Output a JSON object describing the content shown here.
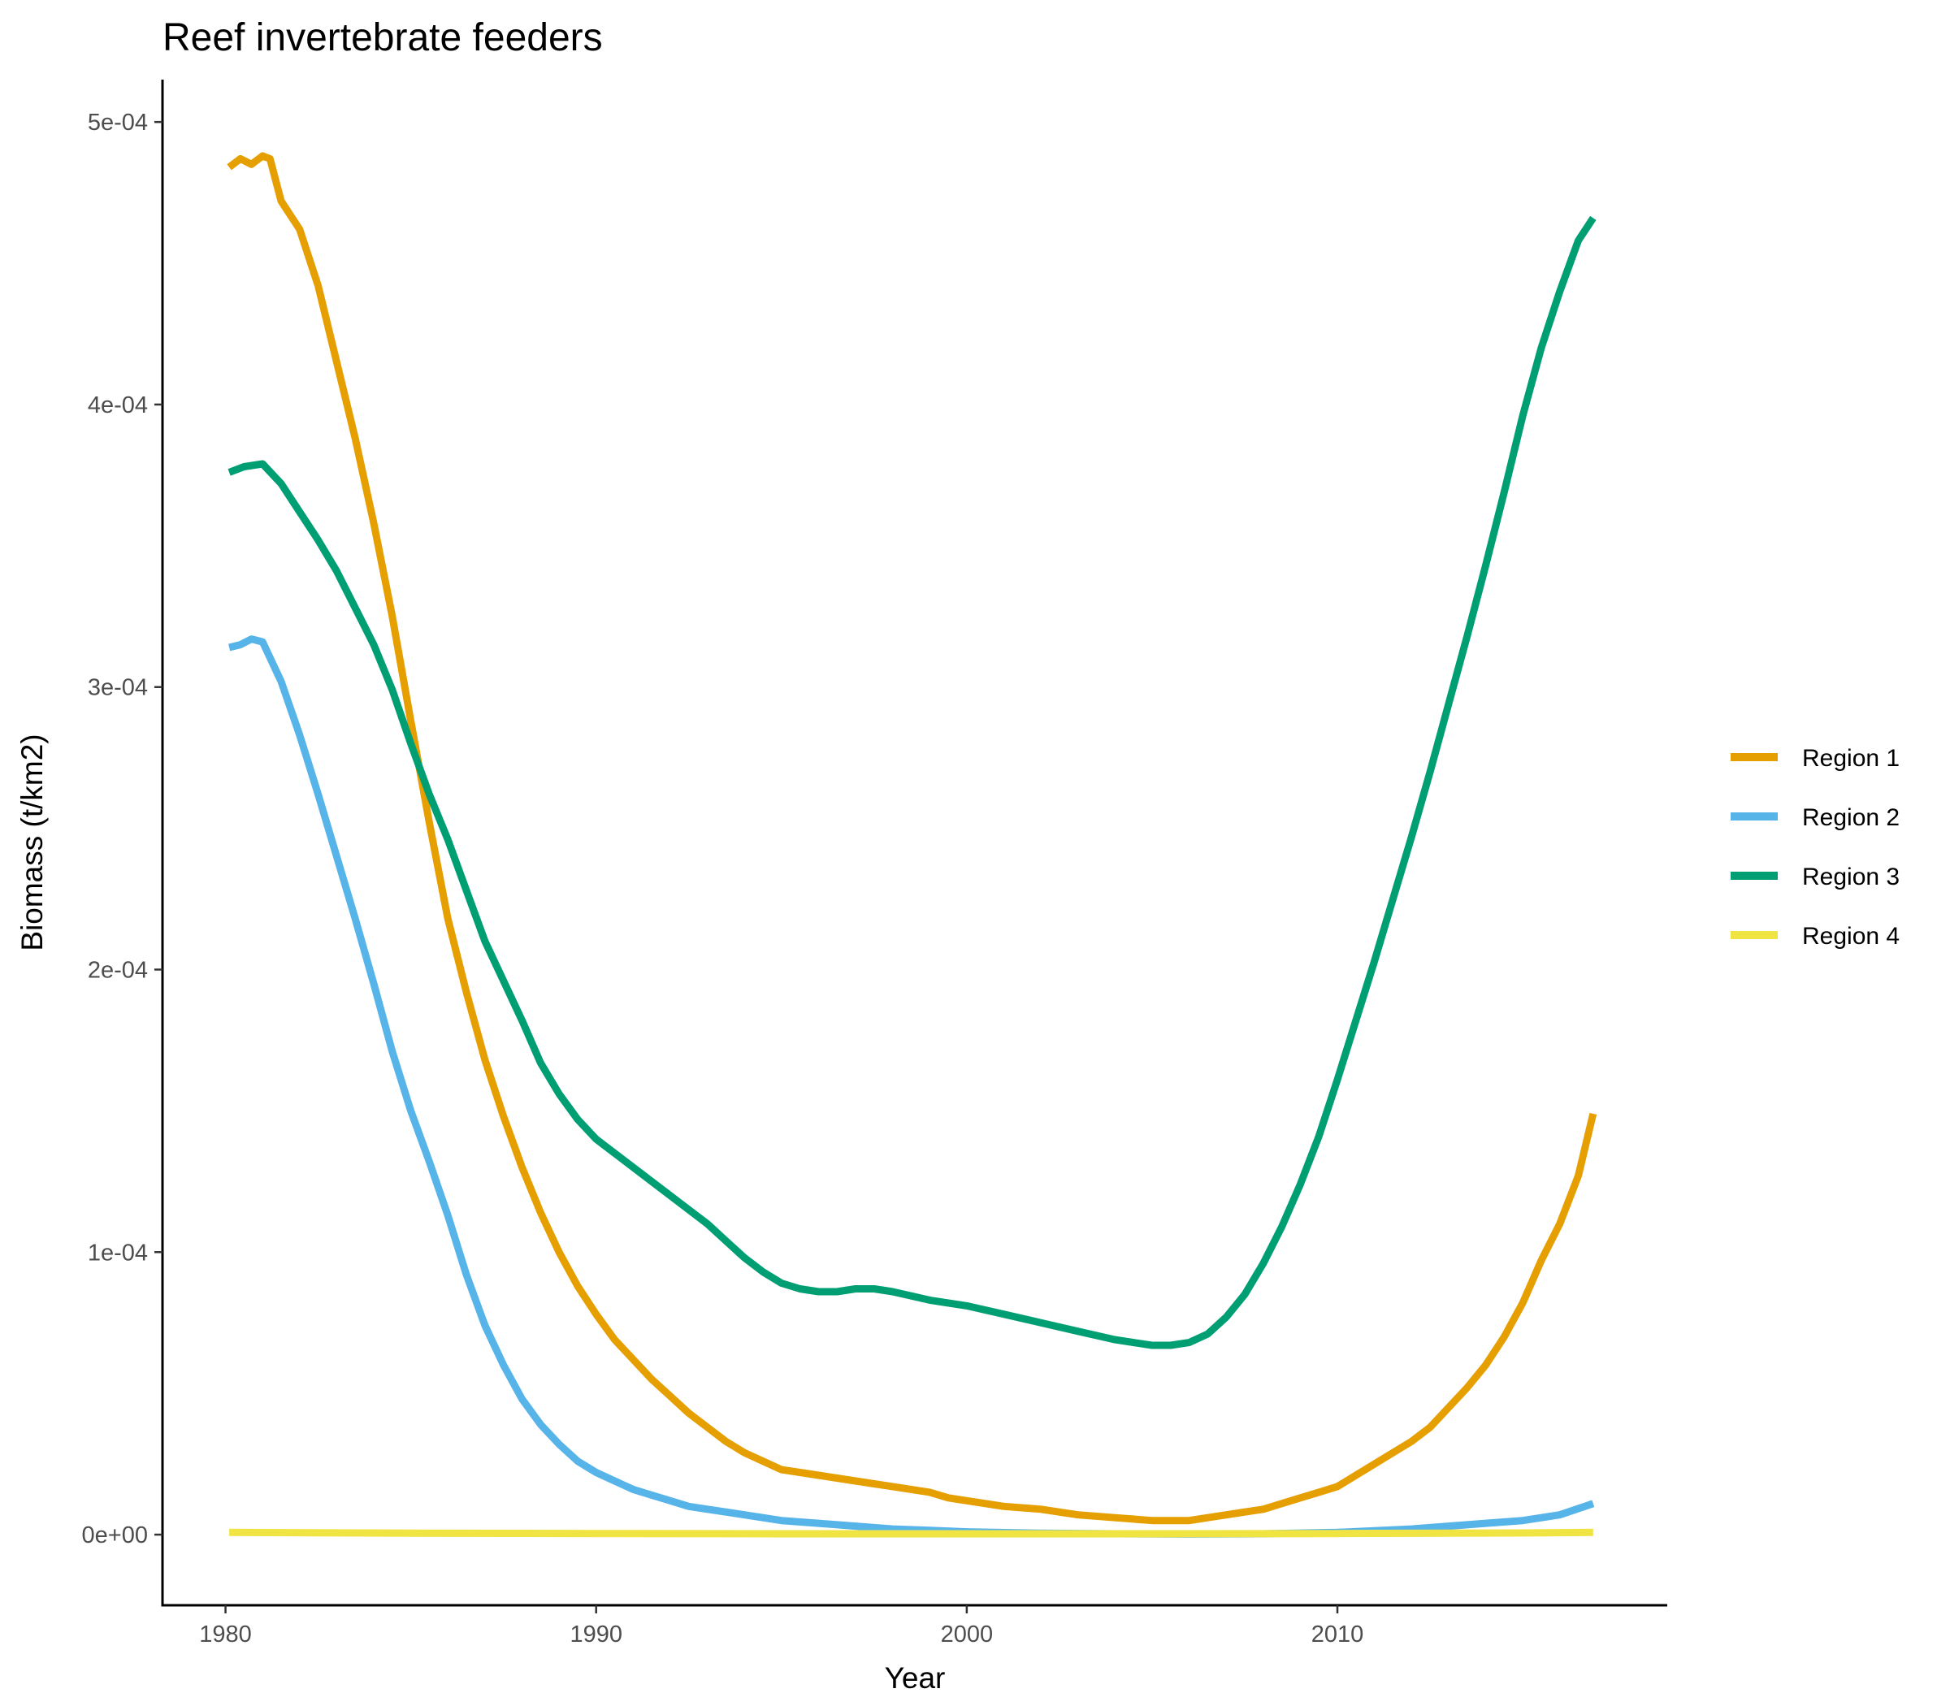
{
  "chart_data": {
    "type": "line",
    "title": "Reef invertebrate feeders",
    "xlabel": "Year",
    "ylabel": "Biomass (t/km2)",
    "xlim": [
      1978.3,
      2018.9
    ],
    "ylim": [
      -2.5e-05,
      0.000515
    ],
    "x_ticks": [
      1980,
      1990,
      2000,
      2010
    ],
    "x_tick_labels": [
      "1980",
      "1990",
      "2000",
      "2010"
    ],
    "y_ticks": [
      0,
      0.0001,
      0.0002,
      0.0003,
      0.0004,
      0.0005
    ],
    "y_tick_labels": [
      "0e+00",
      "1e-04",
      "2e-04",
      "3e-04",
      "4e-04",
      "5e-04"
    ],
    "legend_position": "right",
    "grid": false,
    "series": [
      {
        "name": "Region 1",
        "color": "#E69F00",
        "x": [
          1980.1,
          1980.4,
          1980.7,
          1981.0,
          1981.2,
          1981.5,
          1982.0,
          1982.5,
          1983.0,
          1983.5,
          1984.0,
          1984.5,
          1985.0,
          1985.5,
          1986.0,
          1986.5,
          1987.0,
          1987.5,
          1988.0,
          1988.5,
          1989.0,
          1989.5,
          1990.0,
          1990.5,
          1991.0,
          1991.5,
          1992.0,
          1992.5,
          1993.0,
          1993.5,
          1994.0,
          1994.5,
          1995.0,
          1995.5,
          1996.0,
          1996.5,
          1997.0,
          1997.5,
          1998.0,
          1998.5,
          1999.0,
          1999.5,
          2000.0,
          2001.0,
          2002.0,
          2003.0,
          2004.0,
          2005.0,
          2005.5,
          2006.0,
          2006.5,
          2007.0,
          2007.5,
          2008.0,
          2008.5,
          2009.0,
          2009.5,
          2010.0,
          2010.5,
          2011.0,
          2011.5,
          2012.0,
          2012.5,
          2013.0,
          2013.5,
          2014.0,
          2014.5,
          2015.0,
          2015.5,
          2016.0,
          2016.5,
          2016.9
        ],
        "values": [
          0.000484,
          0.000487,
          0.000485,
          0.000488,
          0.000487,
          0.000472,
          0.000462,
          0.000442,
          0.000415,
          0.000388,
          0.000358,
          0.000325,
          0.000288,
          0.000252,
          0.000218,
          0.000192,
          0.000168,
          0.000148,
          0.00013,
          0.000114,
          0.0001,
          8.8e-05,
          7.8e-05,
          6.9e-05,
          6.2e-05,
          5.5e-05,
          4.9e-05,
          4.3e-05,
          3.8e-05,
          3.3e-05,
          2.9e-05,
          2.6e-05,
          2.3e-05,
          2.2e-05,
          2.1e-05,
          2e-05,
          1.9e-05,
          1.8e-05,
          1.7e-05,
          1.6e-05,
          1.5e-05,
          1.3e-05,
          1.2e-05,
          1e-05,
          9e-06,
          7e-06,
          6e-06,
          5e-06,
          5e-06,
          5e-06,
          6e-06,
          7e-06,
          8e-06,
          9e-06,
          1.1e-05,
          1.3e-05,
          1.5e-05,
          1.7e-05,
          2.1e-05,
          2.5e-05,
          2.9e-05,
          3.3e-05,
          3.8e-05,
          4.5e-05,
          5.2e-05,
          6e-05,
          7e-05,
          8.2e-05,
          9.7e-05,
          0.00011,
          0.000127,
          0.000149
        ]
      },
      {
        "name": "Region 2",
        "color": "#56B4E9",
        "x": [
          1980.1,
          1980.4,
          1980.7,
          1981.0,
          1981.5,
          1982.0,
          1982.5,
          1983.0,
          1983.5,
          1984.0,
          1984.5,
          1985.0,
          1985.5,
          1986.0,
          1986.5,
          1987.0,
          1987.5,
          1988.0,
          1988.5,
          1989.0,
          1989.5,
          1990.0,
          1990.5,
          1991.0,
          1991.5,
          1992.0,
          1992.5,
          1993.0,
          1993.5,
          1994.0,
          1995.0,
          1996.0,
          1997.0,
          1998.0,
          1999.0,
          2000.0,
          2002.0,
          2004.0,
          2006.0,
          2008.0,
          2010.0,
          2012.0,
          2013.0,
          2014.0,
          2015.0,
          2016.0,
          2016.9
        ],
        "values": [
          0.000314,
          0.000315,
          0.000317,
          0.000316,
          0.000302,
          0.000283,
          0.000262,
          0.00024,
          0.000218,
          0.000195,
          0.000171,
          0.00015,
          0.000132,
          0.000113,
          9.2e-05,
          7.4e-05,
          6e-05,
          4.8e-05,
          3.9e-05,
          3.2e-05,
          2.6e-05,
          2.2e-05,
          1.9e-05,
          1.6e-05,
          1.4e-05,
          1.2e-05,
          1e-05,
          9e-06,
          8e-06,
          7e-06,
          5e-06,
          4e-06,
          3e-06,
          2e-06,
          1.5e-06,
          1e-06,
          5e-07,
          3e-07,
          2e-07,
          3e-07,
          8e-07,
          2e-06,
          3e-06,
          4e-06,
          5e-06,
          7e-06,
          1.1e-05
        ]
      },
      {
        "name": "Region 3",
        "color": "#009E73",
        "x": [
          1980.1,
          1980.5,
          1981.0,
          1981.5,
          1982.0,
          1982.5,
          1983.0,
          1983.5,
          1984.0,
          1984.5,
          1985.0,
          1985.5,
          1986.0,
          1986.5,
          1987.0,
          1987.5,
          1988.0,
          1988.5,
          1989.0,
          1989.5,
          1990.0,
          1990.5,
          1991.0,
          1991.5,
          1992.0,
          1992.5,
          1993.0,
          1993.5,
          1994.0,
          1994.5,
          1995.0,
          1995.5,
          1996.0,
          1996.5,
          1997.0,
          1997.5,
          1998.0,
          1999.0,
          2000.0,
          2001.0,
          2002.0,
          2003.0,
          2004.0,
          2004.5,
          2005.0,
          2005.5,
          2006.0,
          2006.5,
          2007.0,
          2007.5,
          2008.0,
          2008.5,
          2009.0,
          2009.5,
          2010.0,
          2010.5,
          2011.0,
          2011.5,
          2012.0,
          2012.5,
          2013.0,
          2013.5,
          2014.0,
          2014.5,
          2015.0,
          2015.5,
          2016.0,
          2016.5,
          2016.9
        ],
        "values": [
          0.000376,
          0.000378,
          0.000379,
          0.000372,
          0.000362,
          0.000352,
          0.000341,
          0.000328,
          0.000315,
          0.000299,
          0.00028,
          0.000262,
          0.000246,
          0.000228,
          0.00021,
          0.000196,
          0.000182,
          0.000167,
          0.000156,
          0.000147,
          0.00014,
          0.000135,
          0.00013,
          0.000125,
          0.00012,
          0.000115,
          0.00011,
          0.000104,
          9.8e-05,
          9.3e-05,
          8.9e-05,
          8.7e-05,
          8.6e-05,
          8.6e-05,
          8.7e-05,
          8.7e-05,
          8.6e-05,
          8.3e-05,
          8.1e-05,
          7.8e-05,
          7.5e-05,
          7.2e-05,
          6.9e-05,
          6.8e-05,
          6.7e-05,
          6.7e-05,
          6.8e-05,
          7.1e-05,
          7.7e-05,
          8.5e-05,
          9.6e-05,
          0.000109,
          0.000124,
          0.000141,
          0.000161,
          0.000182,
          0.000203,
          0.000225,
          0.000247,
          0.00027,
          0.000294,
          0.000318,
          0.000343,
          0.000369,
          0.000396,
          0.00042,
          0.00044,
          0.000458,
          0.000466
        ]
      },
      {
        "name": "Region 4",
        "color": "#F0E442",
        "x": [
          1980.1,
          1985.0,
          1990.0,
          1995.0,
          2000.0,
          2005.0,
          2010.0,
          2015.0,
          2016.9
        ],
        "values": [
          8e-07,
          5e-07,
          4e-07,
          3e-07,
          3e-07,
          3e-07,
          4e-07,
          6e-07,
          8e-07
        ]
      }
    ]
  }
}
